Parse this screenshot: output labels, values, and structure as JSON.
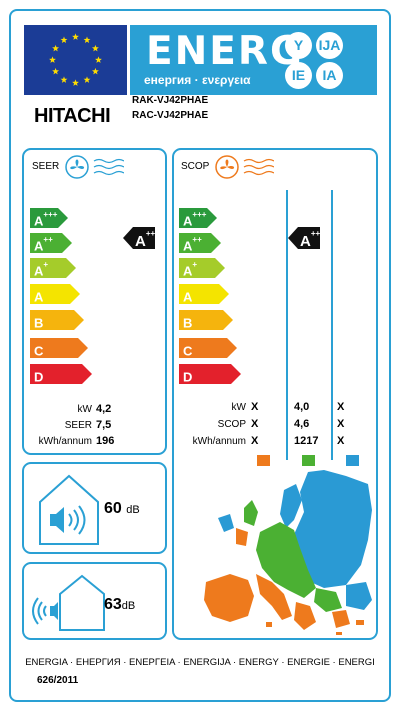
{
  "header": {
    "energy_word": "ENERG",
    "energy_sub": "енергия · ενεργεια",
    "lang_tags": [
      "Y",
      "IJA",
      "IE",
      "IA"
    ],
    "brand": "HITACHI",
    "model_indoor": "RAK-VJ42PHAE",
    "model_outdoor": "RAC-VJ42PHAE"
  },
  "scale_labels": [
    "A",
    "A",
    "A",
    "A",
    "B",
    "C",
    "D"
  ],
  "scale_sups": [
    "+++",
    "++",
    "+",
    "",
    "",
    "",
    ""
  ],
  "scale_colors": [
    "#2a9a3c",
    "#4bb033",
    "#a5cc2a",
    "#f4e400",
    "#f5b40d",
    "#ee7a1d",
    "#e3212c"
  ],
  "cooling": {
    "title": "SEER",
    "class_letter": "A",
    "class_sup": "++",
    "rows": [
      {
        "label": "kW",
        "value": "4,2"
      },
      {
        "label": "SEER",
        "value": "7,5"
      },
      {
        "label": "kWh/annum",
        "value": "196"
      }
    ]
  },
  "heating": {
    "title": "SCOP",
    "class_letter": "A",
    "class_sup": "++",
    "rows": [
      {
        "label": "kW",
        "cold": "X",
        "average": "4,0",
        "warm": "X"
      },
      {
        "label": "SCOP",
        "cold": "X",
        "average": "4,6",
        "warm": "X"
      },
      {
        "label": "kWh/annum",
        "cold": "X",
        "average": "1217",
        "warm": "X"
      }
    ],
    "zone_colors": [
      "#ee7a1d",
      "#4bb033",
      "#2a9ad4"
    ]
  },
  "noise": {
    "indoor_value": "60",
    "outdoor_value": "63",
    "unit": "dB"
  },
  "footer": {
    "languages": "ENERGIA · ЕНЕРГИЯ · ΕΝΕΡΓΕΙΑ · ENERGIJA · ENERGY · ENERGIE · ENERGI",
    "regulation": "626/2011"
  }
}
